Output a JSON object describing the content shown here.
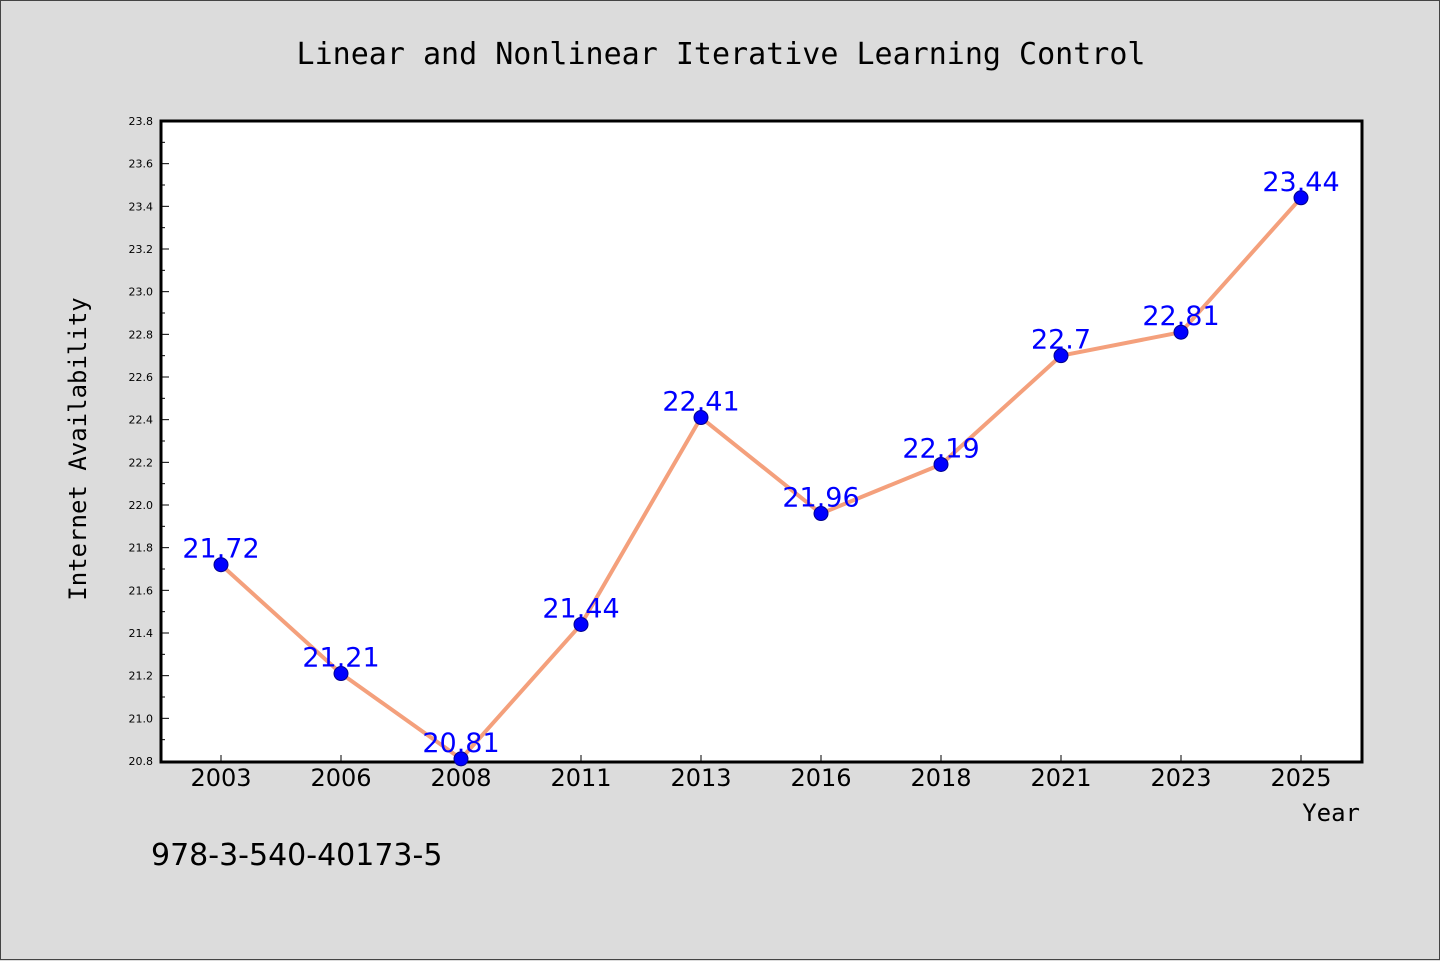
{
  "footer": {
    "text": "978-3-540-40173-5"
  },
  "colors": {
    "background": "#dcdcdc",
    "plot_background": "#ffffff",
    "line": "#f4a07c",
    "marker": "#0000ff",
    "data_label": "#0000ff"
  },
  "chart_data": {
    "type": "line",
    "title": "Linear and Nonlinear Iterative Learning Control",
    "xlabel": "Year",
    "ylabel": "Internet Availability",
    "categories": [
      "2003",
      "2006",
      "2008",
      "2011",
      "2013",
      "2016",
      "2018",
      "2021",
      "2023",
      "2025"
    ],
    "series": [
      {
        "values": [
          21.72,
          21.21,
          20.81,
          21.44,
          22.41,
          21.96,
          22.19,
          22.7,
          22.81,
          23.44
        ],
        "labels": [
          "21.72",
          "21.21",
          "20.81",
          "21.44",
          "22.41",
          "21.96",
          "22.19",
          "22.7",
          "22.81",
          "23.44"
        ]
      }
    ],
    "ylim": [
      20.8,
      23.8
    ],
    "yticks": [
      "20.8",
      "21.0",
      "21.2",
      "21.4",
      "21.6",
      "21.8",
      "22.0",
      "22.2",
      "22.4",
      "22.6",
      "22.8",
      "23.0",
      "23.2",
      "23.4",
      "23.6",
      "23.8"
    ],
    "grid": false,
    "legend": "none"
  }
}
